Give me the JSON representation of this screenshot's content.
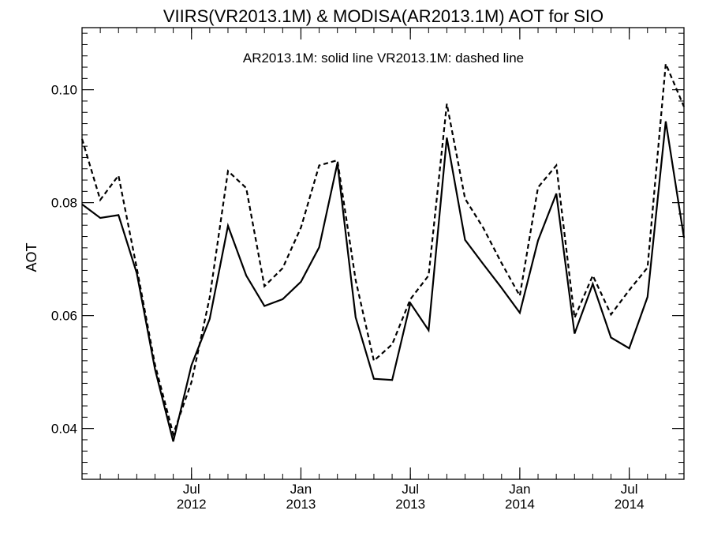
{
  "chart_data": {
    "type": "line",
    "title": "VIIRS(VR2013.1M) & MODISA(AR2013.1M)  AOT for SIO",
    "annotation": "AR2013.1M: solid line   VR2013.1M: dashed line",
    "ylabel": "AOT",
    "xlabel": "",
    "ylim": [
      0.031,
      0.111
    ],
    "y_ticks": [
      "0.04",
      "0.06",
      "0.08",
      "0.10"
    ],
    "x_tick_labels": [
      {
        "month": "Jul",
        "year": "2012"
      },
      {
        "month": "Jan",
        "year": "2013"
      },
      {
        "month": "Jul",
        "year": "2013"
      },
      {
        "month": "Jan",
        "year": "2014"
      },
      {
        "month": "Jul",
        "year": "2014"
      }
    ],
    "x_dates": [
      "2012-01",
      "2012-02",
      "2012-03",
      "2012-04",
      "2012-05",
      "2012-06",
      "2012-07",
      "2012-08",
      "2012-09",
      "2012-10",
      "2012-11",
      "2012-12",
      "2013-01",
      "2013-02",
      "2013-03",
      "2013-04",
      "2013-05",
      "2013-06",
      "2013-07",
      "2013-08",
      "2013-09",
      "2013-10",
      "2013-11",
      "2013-12",
      "2014-01",
      "2014-02",
      "2014-03",
      "2014-04",
      "2014-05",
      "2014-06",
      "2014-07",
      "2014-08",
      "2014-09",
      "2014-10"
    ],
    "xlim": [
      "2012-01",
      "2014-10"
    ],
    "grid": false,
    "series": [
      {
        "name": "AR2013.1M",
        "style": "solid",
        "color": "#000000",
        "values": [
          0.0797,
          0.0773,
          0.0778,
          0.0675,
          0.0505,
          0.0377,
          0.0512,
          0.0594,
          0.0759,
          0.0671,
          0.0617,
          0.0629,
          0.066,
          0.0721,
          0.087,
          0.0597,
          0.0488,
          0.0486,
          0.0622,
          0.0574,
          0.0915,
          0.0734,
          0.0691,
          0.0649,
          0.0605,
          0.0733,
          0.0816,
          0.0568,
          0.0656,
          0.0561,
          0.0542,
          0.0633,
          0.0944,
          0.0738
        ]
      },
      {
        "name": "VR2013.1M",
        "style": "dashed",
        "color": "#000000",
        "values": [
          0.0913,
          0.0805,
          0.0848,
          0.0684,
          0.0513,
          0.039,
          0.0482,
          0.0632,
          0.0856,
          0.0826,
          0.0652,
          0.0684,
          0.0756,
          0.0866,
          0.0875,
          0.0663,
          0.052,
          0.0549,
          0.0629,
          0.0671,
          0.0975,
          0.0807,
          0.0755,
          0.0693,
          0.0635,
          0.0827,
          0.0866,
          0.0596,
          0.0671,
          0.0602,
          0.0645,
          0.0685,
          0.1046,
          0.097
        ]
      }
    ]
  }
}
